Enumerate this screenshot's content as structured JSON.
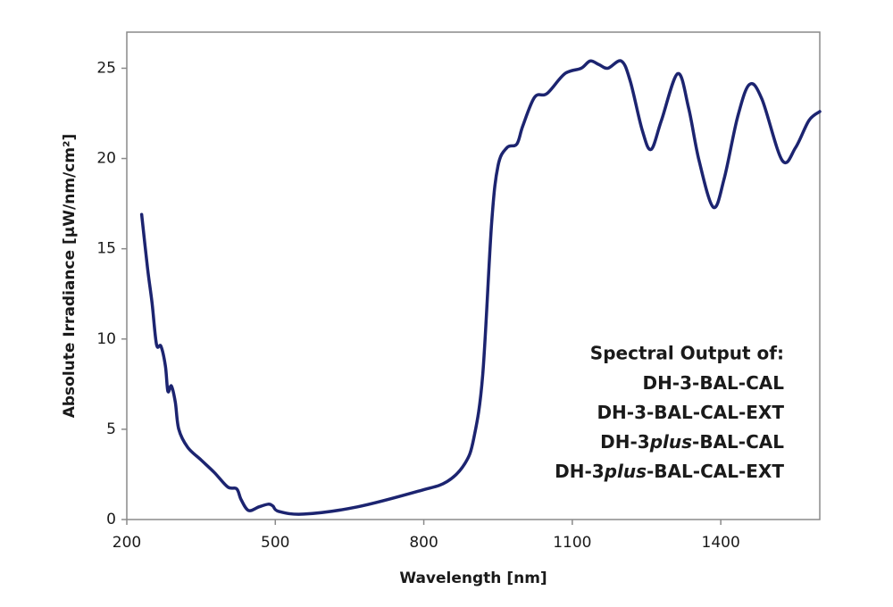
{
  "chart_data": {
    "type": "line",
    "x_label": "Wavelength [nm]",
    "y_label": "Absolute Irradiance [µW/nm/cm²]",
    "annotation": {
      "title": "Spectral Output of:",
      "lines": [
        [
          {
            "text": "DH-3-BAL-CAL"
          }
        ],
        [
          {
            "text": "DH-3-BAL-CAL-EXT"
          }
        ],
        [
          {
            "text": "DH-3"
          },
          {
            "text": "plus",
            "italic": true
          },
          {
            "text": "-BAL-CAL"
          }
        ],
        [
          {
            "text": "DH-3"
          },
          {
            "text": "plus",
            "italic": true
          },
          {
            "text": "-BAL-CAL-EXT"
          }
        ]
      ]
    },
    "x": [
      230,
      242,
      251,
      260,
      269,
      278,
      283,
      290,
      298,
      305,
      323,
      350,
      377,
      404,
      422,
      431,
      446,
      467,
      486,
      495,
      507,
      558,
      666,
      793,
      847,
      883,
      901,
      919,
      937,
      950,
      968,
      988,
      1000,
      1024,
      1049,
      1085,
      1118,
      1136,
      1154,
      1172,
      1199,
      1217,
      1241,
      1259,
      1280,
      1313,
      1335,
      1356,
      1385,
      1407,
      1434,
      1458,
      1483,
      1524,
      1551,
      1578,
      1600
    ],
    "series": [
      {
        "name": null,
        "color": "#1c2470",
        "values": [
          16.9,
          13.9,
          12.0,
          9.7,
          9.6,
          8.5,
          7.1,
          7.4,
          6.5,
          5.0,
          4.0,
          3.3,
          2.6,
          1.8,
          1.7,
          1.1,
          0.5,
          0.7,
          0.85,
          0.75,
          0.45,
          0.3,
          0.7,
          1.6,
          2.1,
          3.1,
          4.5,
          8.0,
          16.4,
          19.6,
          20.6,
          20.8,
          21.8,
          23.4,
          23.6,
          24.7,
          25.0,
          25.4,
          25.2,
          25.0,
          25.4,
          24.3,
          21.6,
          20.5,
          22.1,
          24.7,
          22.8,
          19.9,
          17.3,
          18.9,
          22.3,
          24.1,
          23.3,
          19.9,
          20.6,
          22.1,
          22.6
        ]
      }
    ],
    "xlim": [
      200,
      1600
    ],
    "xticks": [
      200,
      500,
      800,
      1100,
      1400
    ],
    "ylim": [
      0,
      27
    ],
    "yticks": [
      0,
      5,
      10,
      15,
      20,
      25
    ],
    "grid": false
  }
}
